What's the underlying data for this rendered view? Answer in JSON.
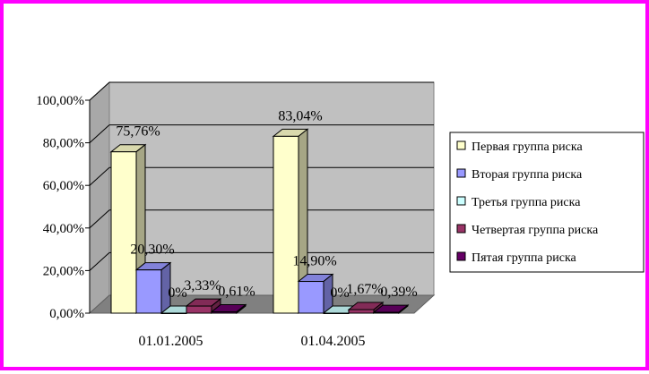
{
  "chart_data": {
    "type": "bar",
    "style": "3d-clustered-column",
    "title": "",
    "xlabel": "",
    "ylabel": "",
    "ylim": [
      0,
      100
    ],
    "yticks": [
      "0,00%",
      "20,00%",
      "40,00%",
      "60,00%",
      "80,00%",
      "100,00%"
    ],
    "categories": [
      "01.01.2005",
      "01.04.2005"
    ],
    "grid": true,
    "legend_position": "right",
    "series": [
      {
        "name": "Первая группа риска",
        "values": [
          75.76,
          83.04
        ],
        "labels": [
          "75,76%",
          "83,04%"
        ],
        "color": "#ffffcc"
      },
      {
        "name": "Вторая группа риска",
        "values": [
          20.3,
          14.9
        ],
        "labels": [
          "20,30%",
          "14,90%"
        ],
        "color": "#9999ff"
      },
      {
        "name": "Третья группа риска",
        "values": [
          0,
          0
        ],
        "labels": [
          "0%",
          "0%"
        ],
        "color": "#ccffff"
      },
      {
        "name": "Четвертая группа риска",
        "values": [
          3.33,
          1.67
        ],
        "labels": [
          "3,33%",
          "1,67%"
        ],
        "color": "#993366"
      },
      {
        "name": "Пятая группа риска",
        "values": [
          0.61,
          0.39
        ],
        "labels": [
          "0,61%",
          "0,39%"
        ],
        "color": "#660066"
      }
    ]
  }
}
